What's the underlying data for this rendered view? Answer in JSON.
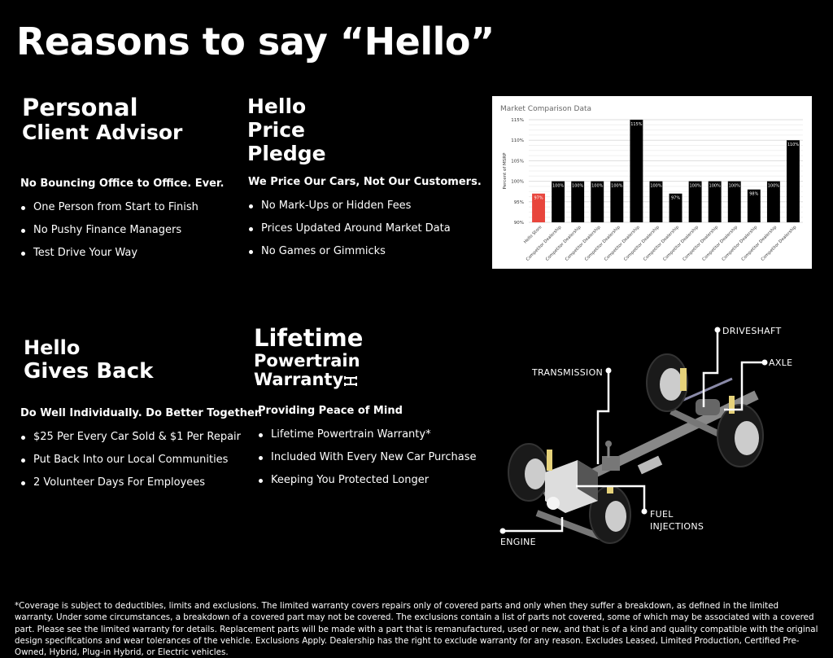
{
  "page_title": "Reasons to say “Hello”",
  "sections": [
    {
      "title_lines": [
        "Personal",
        "Client Advisor"
      ],
      "subtitle": "No Bouncing Office to Office. Ever.",
      "bullets": [
        "One Person from Start to Finish",
        "No Pushy Finance Managers",
        "Test Drive Your Way"
      ]
    },
    {
      "title_lines": [
        "Hello",
        "Price",
        "Pledge"
      ],
      "subtitle": "We Price Our Cars, Not Our Customers.",
      "bullets": [
        "No Mark-Ups or Hidden Fees",
        "Prices Updated Around Market Data",
        "No Games or Gimmicks"
      ]
    },
    {
      "title_lines": [
        "Hello",
        "Gives Back"
      ],
      "subtitle": "Do Well Individually. Do Better Together.",
      "bullets": [
        "$25 Per Every Car Sold & $1 Per Repair",
        "Put Back Into our Local Communities",
        "2 Volunteer Days For Employees"
      ]
    },
    {
      "title_lines": [
        "Lifetime",
        "Powertrain",
        "Warranty"
      ],
      "subtitle": "Providing Peace of Mind",
      "bullets": [
        "Lifetime Powertrain Warranty*",
        "Included With Every New Car Purchase",
        "Keeping You Protected Longer"
      ]
    }
  ],
  "diagram_labels": {
    "driveshaft": "DRIVESHAFT",
    "axle": "AXLE",
    "transmission": "TRANSMISSION",
    "fuel": "FUEL",
    "injections": "INJECTIONS",
    "engine": "ENGINE"
  },
  "chart_data": {
    "type": "bar",
    "title": "Market Comparison Data",
    "ylabel": "Percent of MSRP",
    "xlabel": "",
    "ylim": [
      90,
      115
    ],
    "yticks": [
      "90%",
      "95%",
      "100%",
      "105%",
      "110%",
      "115%"
    ],
    "grid": true,
    "categories": [
      "Hello Store",
      "Competitor Dealership",
      "Competitor Dealership",
      "Competitor Dealership",
      "Competitor Dealership",
      "Competitor Dealership",
      "Competitor Dealership",
      "Competitor Dealership",
      "Competitor Dealership",
      "Competitor Dealership",
      "Competitor Dealership",
      "Competitor Dealership",
      "Competitor Dealership",
      "Competitor Dealership"
    ],
    "values": [
      97,
      100,
      100,
      100,
      100,
      115,
      100,
      97,
      100,
      100,
      100,
      98,
      100,
      110
    ],
    "data_labels": [
      "97%",
      "100%",
      "100%",
      "100%",
      "100%",
      "115%",
      "100%",
      "97%",
      "100%",
      "100%",
      "100%",
      "98%",
      "100%",
      "110%"
    ],
    "colors": {
      "highlight": "#e8453c",
      "default": "#000000"
    }
  },
  "footnote": "*Coverage is subject to deductibles, limits and exclusions. The limited warranty covers repairs only of covered parts and only when they suffer a breakdown, as defined in the limited warranty. Under some circumstances, a breakdown of a covered part may not be covered. The exclusions contain a list of parts not covered, some of which may be associated with a covered part. Please see the limited warranty for details. Replacement parts will be made with a part that is remanufactured, used or new, and that is of a kind and quality compatible with the original design specifications and wear tolerances of the vehicle. Exclusions Apply. Dealership has the right to exclude warranty for any reason. Excludes Leased, Limited Production, Certified Pre-Owned, Hybrid, Plug-in Hybrid, or Electric vehicles."
}
